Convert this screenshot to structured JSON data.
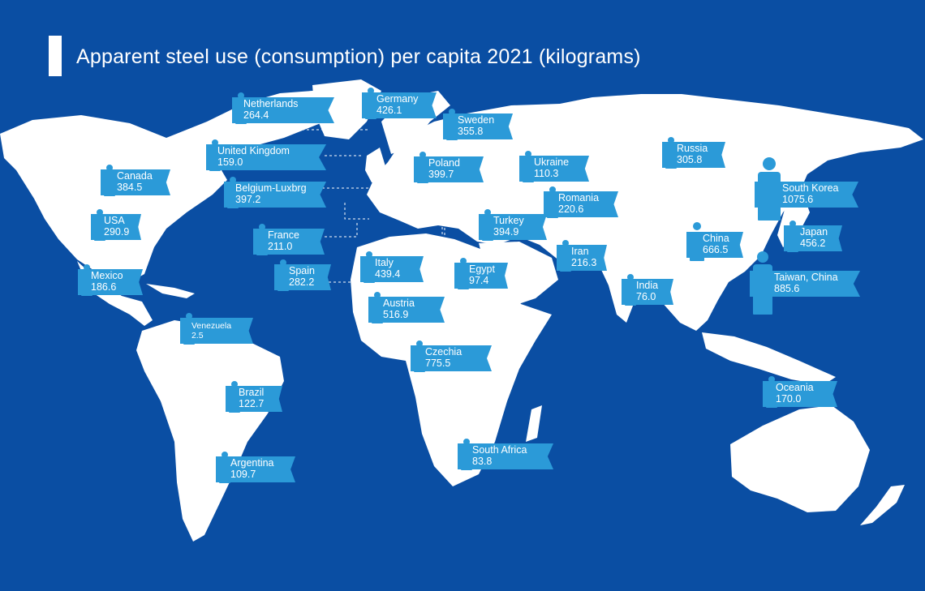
{
  "title": "Apparent steel use (consumption) per capita 2021 (kilograms)",
  "colors": {
    "ocean": "#0a4ea3",
    "land": "#ffffff",
    "label": "#2b9ad8",
    "text": "#ffffff"
  },
  "countries": [
    {
      "id": "netherlands",
      "name": "Netherlands",
      "value": "264.4"
    },
    {
      "id": "germany",
      "name": "Germany",
      "value": "426.1"
    },
    {
      "id": "sweden",
      "name": "Sweden",
      "value": "355.8"
    },
    {
      "id": "united-kingdom",
      "name": "United Kingdom",
      "value": "159.0"
    },
    {
      "id": "poland",
      "name": "Poland",
      "value": "399.7"
    },
    {
      "id": "ukraine",
      "name": "Ukraine",
      "value": "110.3"
    },
    {
      "id": "russia",
      "name": "Russia",
      "value": "305.8"
    },
    {
      "id": "canada",
      "name": "Canada",
      "value": "384.5"
    },
    {
      "id": "belgium-luxbrg",
      "name": "Belgium-Luxbrg",
      "value": "397.2"
    },
    {
      "id": "romania",
      "name": "Romania",
      "value": "220.6"
    },
    {
      "id": "south-korea",
      "name": "South Korea",
      "value": "1075.6"
    },
    {
      "id": "usa",
      "name": "USA",
      "value": "290.9"
    },
    {
      "id": "turkey",
      "name": "Turkey",
      "value": "394.9"
    },
    {
      "id": "france",
      "name": "France",
      "value": "211.0"
    },
    {
      "id": "japan",
      "name": "Japan",
      "value": "456.2"
    },
    {
      "id": "china",
      "name": "China",
      "value": "666.5"
    },
    {
      "id": "iran",
      "name": "Iran",
      "value": "216.3"
    },
    {
      "id": "italy",
      "name": "Italy",
      "value": "439.4"
    },
    {
      "id": "mexico",
      "name": "Mexico",
      "value": "186.6"
    },
    {
      "id": "egypt",
      "name": "Egypt",
      "value": "97.4"
    },
    {
      "id": "spain",
      "name": "Spain",
      "value": "282.2"
    },
    {
      "id": "taiwan-china",
      "name": "Taiwan, China",
      "value": "885.6"
    },
    {
      "id": "india",
      "name": "India",
      "value": "76.0"
    },
    {
      "id": "austria",
      "name": "Austria",
      "value": "516.9"
    },
    {
      "id": "venezuela",
      "name": "Venezuela",
      "value": "2.5"
    },
    {
      "id": "czechia",
      "name": "Czechia",
      "value": "775.5"
    },
    {
      "id": "brazil",
      "name": "Brazil",
      "value": "122.7"
    },
    {
      "id": "oceania",
      "name": "Oceania",
      "value": "170.0"
    },
    {
      "id": "south-africa",
      "name": "South Africa",
      "value": "83.8"
    },
    {
      "id": "argentina",
      "name": "Argentina",
      "value": "109.7"
    }
  ]
}
